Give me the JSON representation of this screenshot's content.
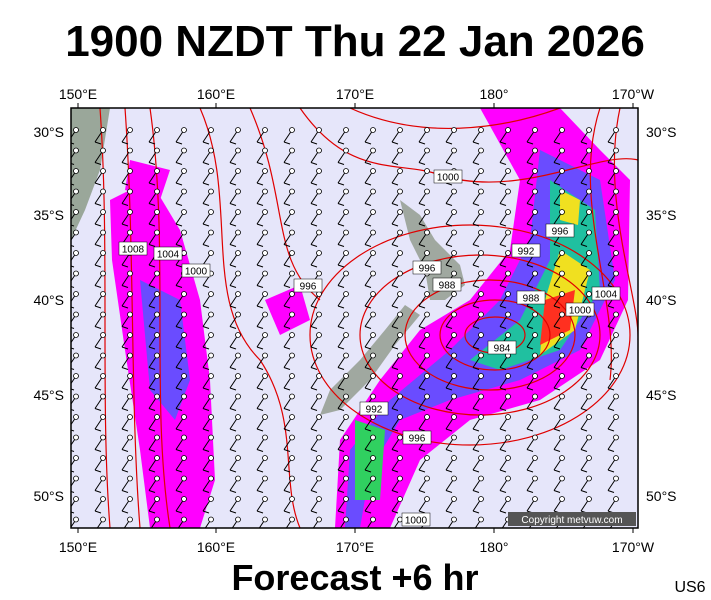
{
  "header": {
    "title": "1900 NZDT Thu 22 Jan 2026"
  },
  "map": {
    "lon_labels": [
      "150°E",
      "160°E",
      "170°E",
      "180°",
      "170°W"
    ],
    "lat_labels": [
      "30°S",
      "35°S",
      "40°S",
      "45°S",
      "50°S"
    ],
    "isobar_labels": [
      "1000",
      "996",
      "992",
      "996",
      "988",
      "988",
      "1000",
      "1004",
      "984",
      "992",
      "996",
      "1008",
      "1004",
      "1000",
      "996",
      "1000"
    ],
    "copyright": "Copyright metvuw.com"
  },
  "footer": {
    "forecast": "Forecast +6 hr",
    "code": "US6"
  }
}
